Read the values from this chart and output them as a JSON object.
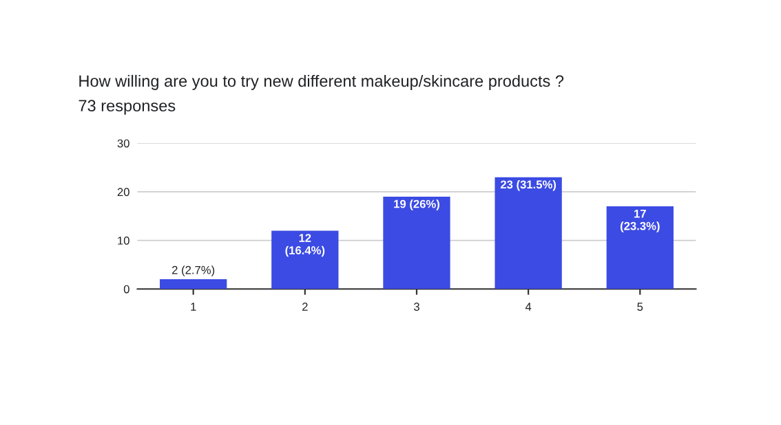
{
  "chart_data": {
    "type": "bar",
    "title": "How willing are you to try new different makeup/skincare products ?",
    "subtitle": "73 responses",
    "categories": [
      "1",
      "2",
      "3",
      "4",
      "5"
    ],
    "values": [
      2,
      12,
      19,
      23,
      17
    ],
    "value_labels": [
      "2 (2.7%)",
      "12\n(16.4%)",
      "19 (26%)",
      "23 (31.5%)",
      "17\n(23.3%)"
    ],
    "color": "#3b4be3",
    "ylim": [
      0,
      30
    ],
    "yticks": [
      0,
      10,
      20,
      30
    ],
    "grid": "y"
  }
}
